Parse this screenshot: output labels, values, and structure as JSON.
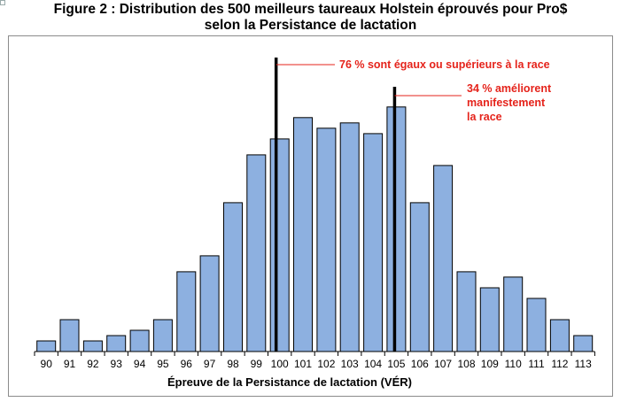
{
  "title_lines": [
    "Figure 2 : Distribution  des 500 meilleurs taureaux Holstein éprouvés pour Pro$",
    "selon la Persistance de lactation"
  ],
  "chart_data": {
    "type": "bar",
    "title": "Figure 2 : Distribution  des 500 meilleurs taureaux Holstein éprouvés pour Pro$ selon la Persistance de lactation",
    "xlabel": "Épreuve de la Persistance de lactation (VÉR)",
    "ylabel": "",
    "categories": [
      "90",
      "91",
      "92",
      "93",
      "94",
      "95",
      "96",
      "97",
      "98",
      "99",
      "100",
      "101",
      "102",
      "103",
      "104",
      "105",
      "106",
      "107",
      "108",
      "109",
      "110",
      "111",
      "112",
      "113"
    ],
    "values": [
      2,
      6,
      2,
      3,
      4,
      6,
      15,
      18,
      28,
      37,
      40,
      44,
      42,
      43,
      41,
      46,
      28,
      35,
      15,
      12,
      14,
      10,
      6,
      3
    ],
    "ylim": [
      0,
      50
    ],
    "grid": false,
    "colors": {
      "bar": "#8db0e0",
      "marker": "#000000",
      "annotation": "#e5231b"
    },
    "markers": [
      {
        "x": "100",
        "label": "76 % sont égaux ou supérieurs à la race"
      },
      {
        "x": "105",
        "label_lines": [
          "34 % améliorent",
          "manifestement",
          "la race"
        ]
      }
    ]
  }
}
